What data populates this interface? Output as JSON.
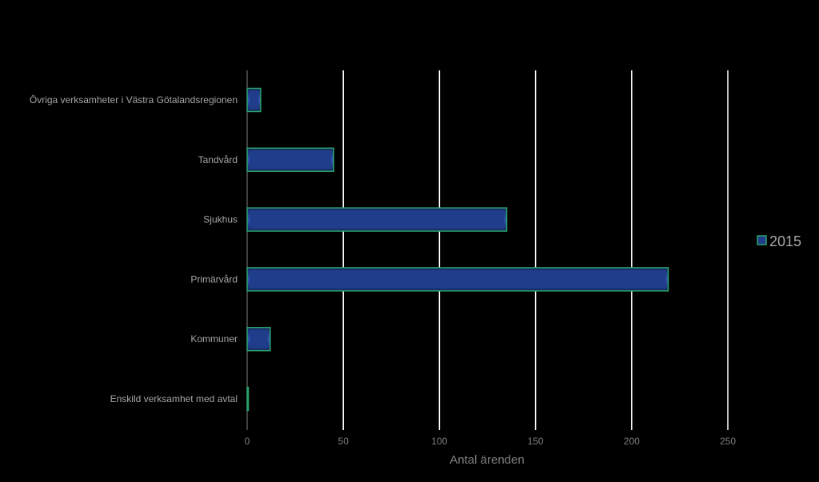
{
  "chart_data": {
    "type": "bar",
    "orientation": "horizontal",
    "categories": [
      "Övriga verksamheter i Västra Götalandsregionen",
      "Tandvård",
      "Sjukhus",
      "Primärvård",
      "Kommuner",
      "Enskild verksamhet med avtal"
    ],
    "series": [
      {
        "name": "2015",
        "values": [
          7,
          45,
          135,
          219,
          12,
          0
        ]
      }
    ],
    "xlabel": "Antal ärenden",
    "ylabel": "",
    "xlim": [
      0,
      250
    ],
    "xticks": [
      "0",
      "50",
      "100",
      "150",
      "200",
      "250"
    ],
    "grid": "vertical",
    "legend_position": "right",
    "colors": {
      "background": "#000000",
      "bar_fill": "#1f3d8a",
      "bar_fill_light": "#2f56b3",
      "bar_fill_dark": "#14285c",
      "bar_border": "#2aa36b",
      "gridline": "#ffffff",
      "axis": "#7f7f7f",
      "category_text": "#a6a6a6",
      "tick_text": "#7f7f7f",
      "legend_text": "#a6a6a6"
    }
  }
}
